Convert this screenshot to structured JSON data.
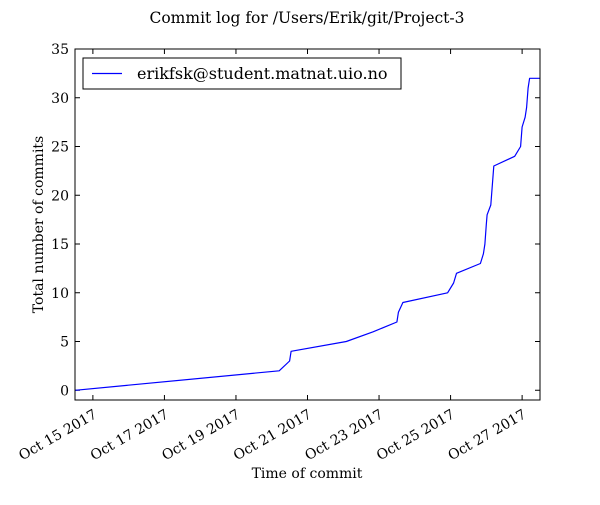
{
  "chart_data": {
    "type": "line",
    "title": "Commit log for /Users/Erik/git/Project-3",
    "xlabel": "Time of commit",
    "ylabel": "Total number of commits",
    "ylim": [
      -1,
      35
    ],
    "xlim": [
      "2017-10-14 12:00",
      "2017-10-27 12:00"
    ],
    "yticks": [
      0,
      5,
      10,
      15,
      20,
      25,
      30,
      35
    ],
    "xticks": [
      "2017-10-15",
      "2017-10-17",
      "2017-10-19",
      "2017-10-21",
      "2017-10-23",
      "2017-10-25",
      "2017-10-27"
    ],
    "xtick_labels": [
      "Oct 15 2017",
      "Oct 17 2017",
      "Oct 19 2017",
      "Oct 21 2017",
      "Oct 23 2017",
      "Oct 25 2017",
      "Oct 27 2017"
    ],
    "legend_placement": "top-left",
    "grid": false,
    "series": [
      {
        "name": "erikfsk@student.matnat.uio.no",
        "color": "#0000ff",
        "points": [
          [
            "2017-10-14 12:00",
            0
          ],
          [
            "2017-10-20 05:00",
            2
          ],
          [
            "2017-10-20 12:00",
            3
          ],
          [
            "2017-10-20 13:00",
            4
          ],
          [
            "2017-10-22 02:00",
            5
          ],
          [
            "2017-10-22 20:00",
            6
          ],
          [
            "2017-10-23 12:00",
            7
          ],
          [
            "2017-10-23 13:00",
            8
          ],
          [
            "2017-10-23 16:00",
            9
          ],
          [
            "2017-10-24 22:00",
            10
          ],
          [
            "2017-10-25 02:00",
            11
          ],
          [
            "2017-10-25 04:00",
            12
          ],
          [
            "2017-10-25 20:00",
            13
          ],
          [
            "2017-10-25 22:00",
            14
          ],
          [
            "2017-10-25 23:00",
            15
          ],
          [
            "2017-10-26 00:00",
            17
          ],
          [
            "2017-10-26 00:30",
            18
          ],
          [
            "2017-10-26 03:00",
            19
          ],
          [
            "2017-10-26 04:00",
            21
          ],
          [
            "2017-10-26 05:00",
            23
          ],
          [
            "2017-10-26 19:00",
            24
          ],
          [
            "2017-10-26 23:00",
            25
          ],
          [
            "2017-10-27 00:00",
            27
          ],
          [
            "2017-10-27 02:00",
            28
          ],
          [
            "2017-10-27 03:00",
            29
          ],
          [
            "2017-10-27 04:00",
            31
          ],
          [
            "2017-10-27 05:00",
            32
          ],
          [
            "2017-10-27 12:00",
            32
          ]
        ]
      }
    ]
  }
}
